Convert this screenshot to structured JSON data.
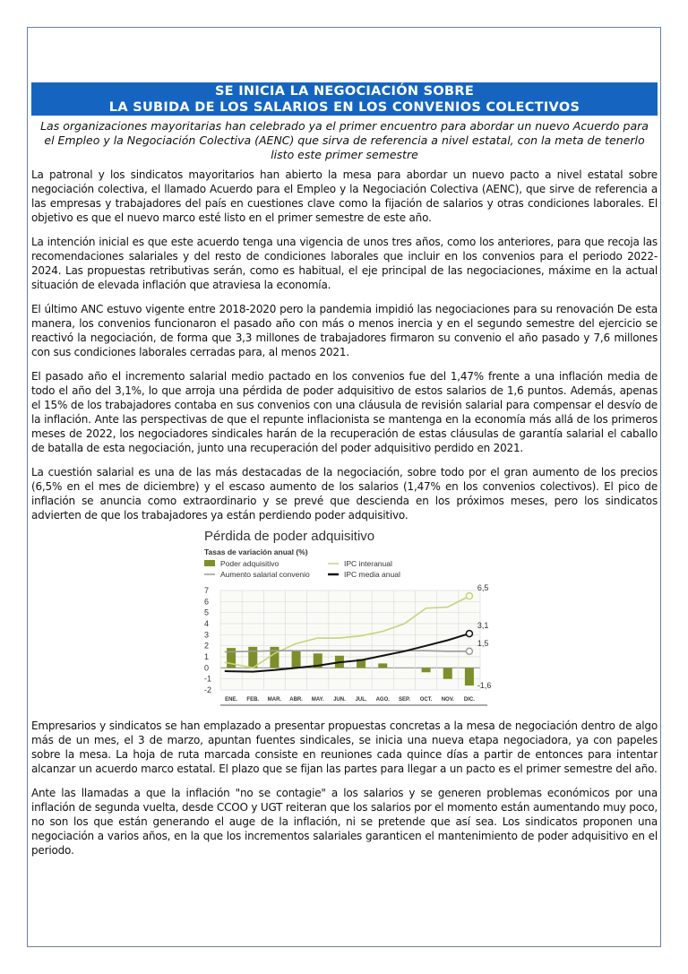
{
  "title_line1": "SE INICIA LA NEGOCIACIÓN SOBRE",
  "title_line2": "LA SUBIDA DE LOS SALARIOS EN LOS CONVENIOS COLECTIVOS",
  "lead": "Las organizaciones mayoritarias han celebrado ya el primer encuentro para abordar un nuevo Acuerdo para el Empleo y la Negociación Colectiva (AENC) que sirva de referencia a nivel estatal, con la meta de tenerlo listo este primer semestre",
  "paragraphs": [
    "La patronal y los sindicatos mayoritarios han abierto la mesa para abordar un nuevo pacto a nivel estatal sobre negociación colectiva, el llamado Acuerdo para el Empleo y la Negociación Colectiva (AENC), que sirve de referencia a las empresas y trabajadores del país en cuestiones clave como la fijación de salarios y otras condiciones laborales. El objetivo es que el nuevo marco esté listo en el primer semestre de este año.",
    "La intención inicial es que este acuerdo tenga una vigencia de unos tres años, como los anteriores, para que recoja las recomendaciones salariales y del resto de condiciones laborales que incluir en los convenios para el periodo 2022-2024. Las propuestas retributivas serán, como es habitual, el eje principal de las negociaciones, máxime en la actual situación de elevada inflación que atraviesa la economía.",
    "El último ANC estuvo vigente entre 2018-2020 pero la pandemia impidió las negociaciones para su renovación De esta manera, los convenios funcionaron el pasado año con más o menos inercia y en el segundo semestre del ejercicio se reactivó la negociación, de forma que 3,3 millones de trabajadores firmaron su convenio el año pasado y 7,6 millones con sus condiciones laborales cerradas para, al menos 2021.",
    "El pasado año el incremento salarial medio pactado en los convenios fue del 1,47% frente a una inflación media de todo el año del 3,1%, lo que arroja una pérdida de poder adquisitivo de estos salarios de 1,6 puntos. Además, apenas el 15% de los trabajadores contaba en sus convenios con una cláusula de revisión salarial para compensar el desvío de la inflación. Ante las perspectivas de que el repunte inflacionista se mantenga en la economía más allá de los primeros meses de 2022, los negociadores sindicales harán de la recuperación de estas cláusulas de garantía salarial el caballo de batalla de esta negociación, junto una recuperación del poder adquisitivo perdido en 2021.",
    "La cuestión salarial es una de las más destacadas de la negociación, sobre todo por el gran aumento de los precios (6,5% en el mes de diciembre) y el escaso aumento de los salarios (1,47% en los convenios colectivos). El pico de inflación se anuncia como extraordinario y se prevé que descienda en los próximos meses, pero los sindicatos advierten de que los trabajadores ya están perdiendo poder adquisitivo.",
    "Empresarios y sindicatos se han emplazado a presentar propuestas concretas a la mesa de negociación dentro de algo más de un mes, el 3 de marzo, apuntan fuentes sindicales, se inicia una nueva etapa negociadora, ya con papeles sobre la mesa. La hoja de ruta marcada consiste en reuniones cada quince días a partir de entonces para intentar alcanzar un acuerdo marco estatal. El plazo que se fijan las partes para llegar a un pacto es el primer semestre del año.",
    "Ante las llamadas a que la inflación \"no se contagie\" a los salarios y se generen problemas económicos por una inflación de segunda vuelta, desde CCOO y UGT reiteran que los salarios por el momento están aumentando muy poco, no son los que están generando el auge de la inflación, ni se pretende que así sea. Los sindicatos proponen una negociación a varios años, en la que los incrementos salariales garanticen el mantenimiento de poder adquisitivo en el periodo."
  ],
  "chart_data": {
    "type": "bar+line",
    "title": "Pérdida de poder adquisitivo",
    "subtitle": "Tasas de variación anual (%)",
    "categories": [
      "ENE.",
      "FEB.",
      "MAR.",
      "ABR.",
      "MAY.",
      "JUN.",
      "JUL.",
      "AGO.",
      "SEP.",
      "OCT.",
      "NOV.",
      "DIC."
    ],
    "ylim": [
      -2,
      7
    ],
    "yticks": [
      -2,
      -1,
      0,
      1,
      2,
      3,
      4,
      5,
      6,
      7
    ],
    "grid": true,
    "legend_position": "top",
    "series": [
      {
        "name": "Poder adquisitivo",
        "kind": "bar",
        "color": "#7d8f2a",
        "values": [
          1.8,
          1.9,
          1.9,
          1.6,
          1.3,
          1.1,
          0.8,
          0.4,
          0,
          -0.4,
          -1.0,
          -1.6
        ]
      },
      {
        "name": "IPC interanual",
        "kind": "line",
        "color": "#c9d27a",
        "values": [
          0.5,
          0.0,
          1.3,
          2.2,
          2.7,
          2.7,
          2.9,
          3.3,
          4.0,
          5.4,
          5.5,
          6.5
        ]
      },
      {
        "name": "Aumento salarial convenio",
        "kind": "line",
        "color": "#9a9a9a",
        "values": [
          1.45,
          1.5,
          1.55,
          1.55,
          1.55,
          1.55,
          1.55,
          1.55,
          1.55,
          1.55,
          1.5,
          1.5
        ]
      },
      {
        "name": "IPC media anual",
        "kind": "line",
        "color": "#111111",
        "values": [
          -0.3,
          -0.35,
          -0.2,
          0.0,
          0.2,
          0.5,
          0.7,
          1.1,
          1.5,
          2.0,
          2.5,
          3.1
        ]
      }
    ],
    "end_labels": [
      "6,5",
      "3,1",
      "1,5",
      "-1,6"
    ]
  }
}
